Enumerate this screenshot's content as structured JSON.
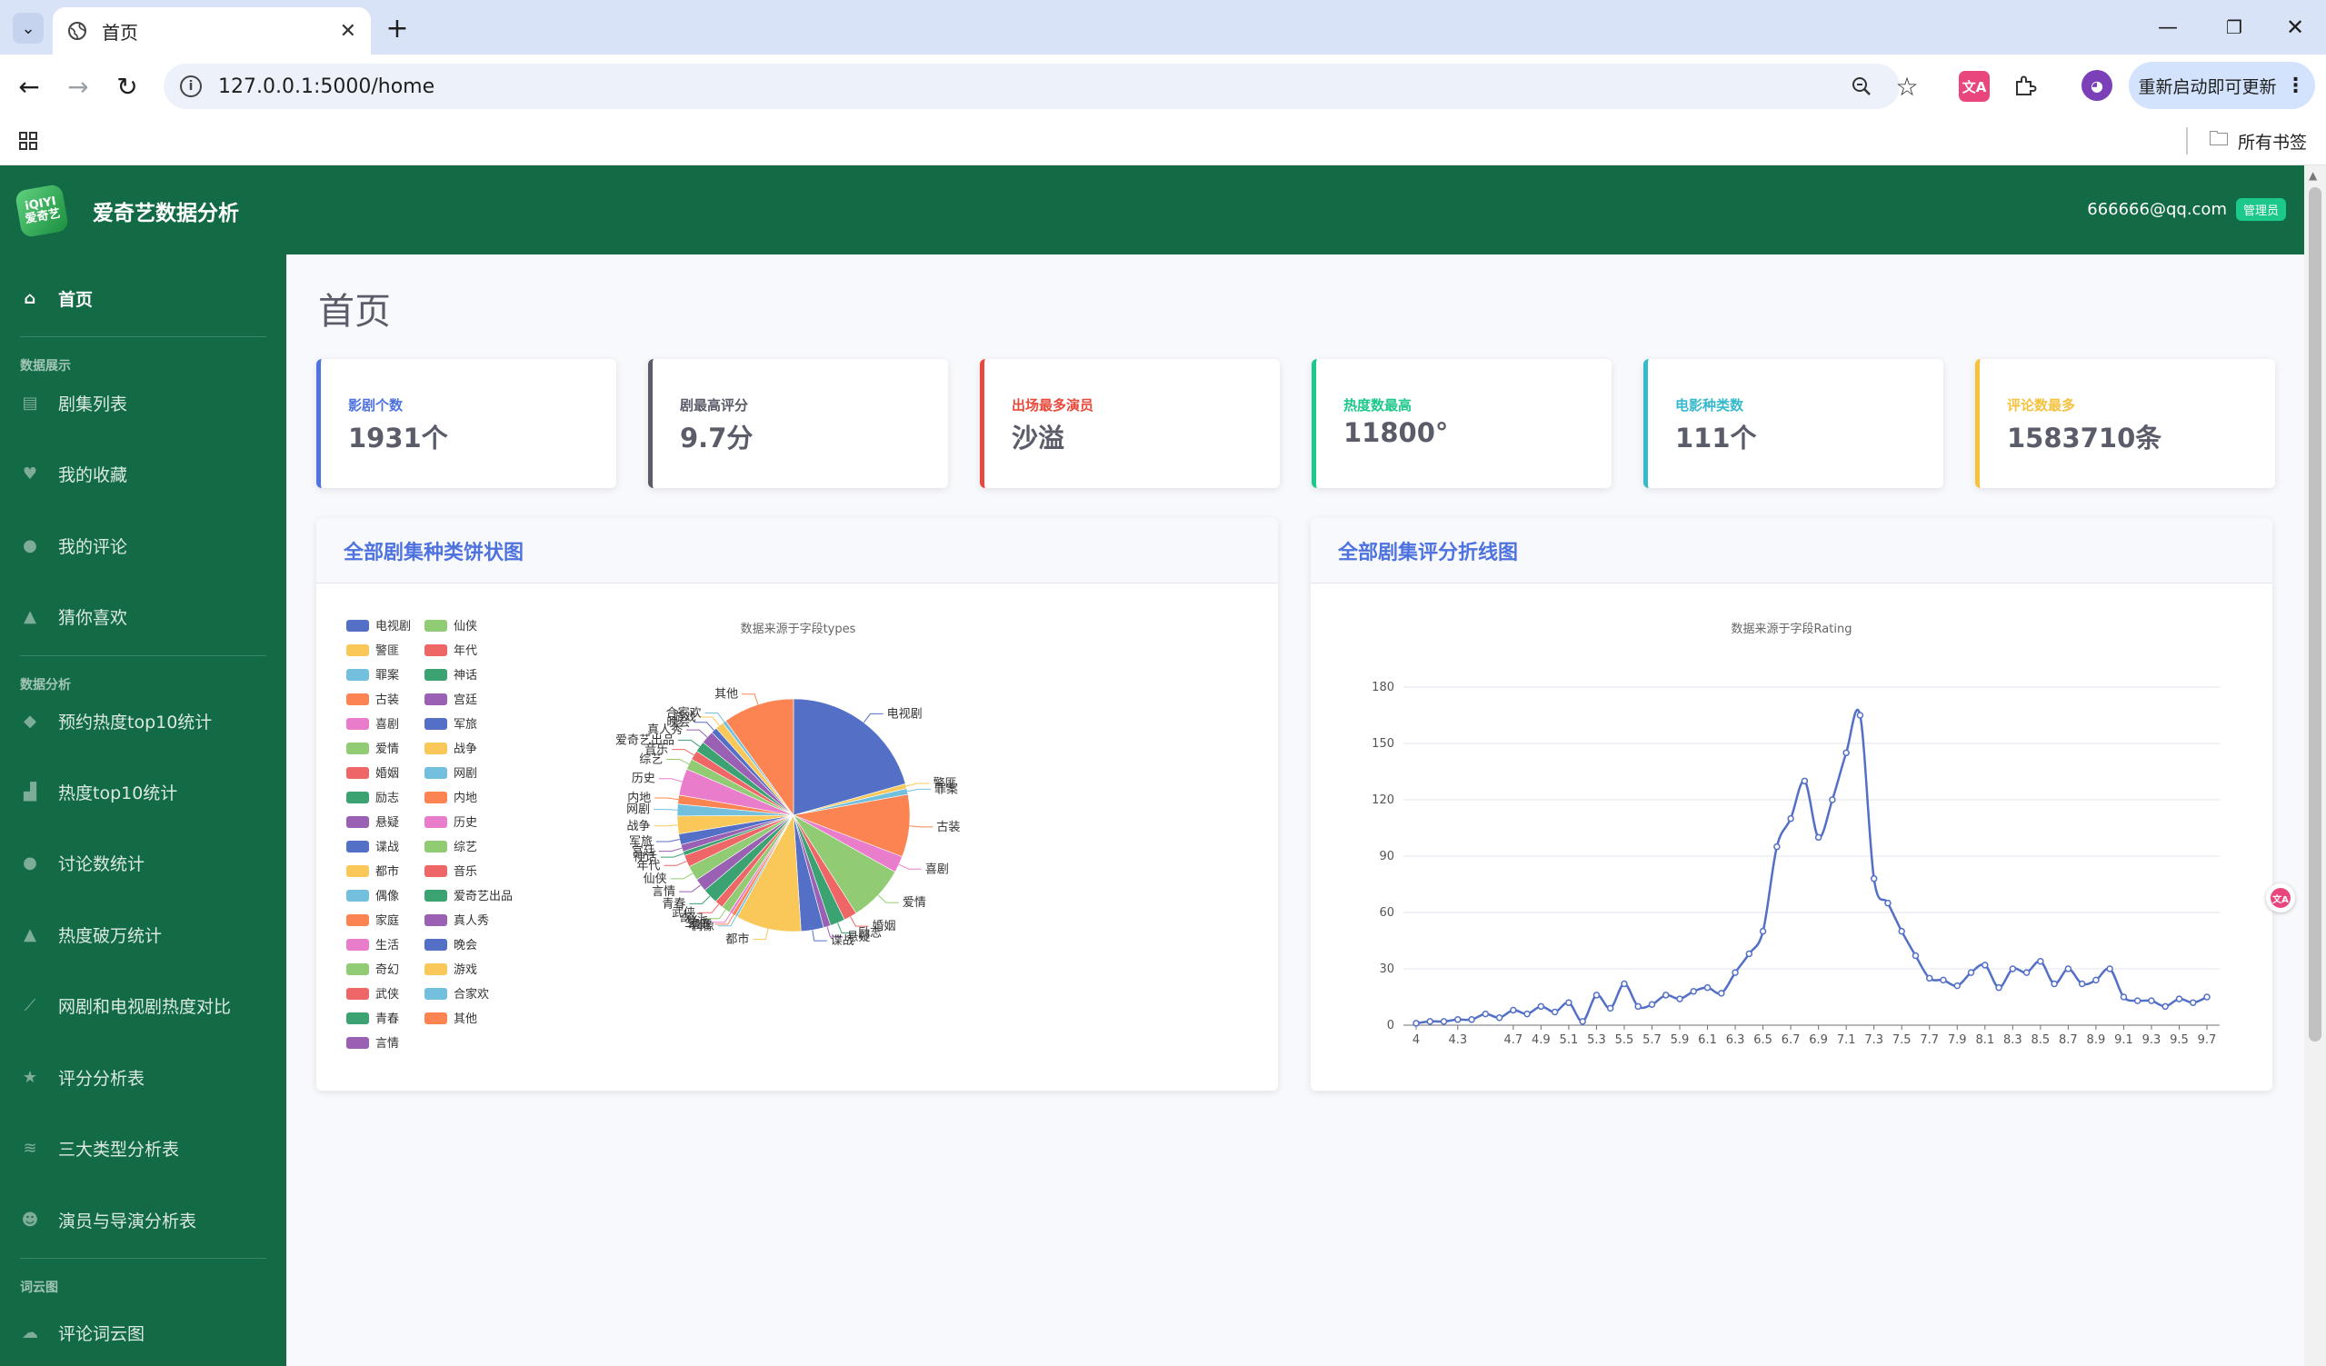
{
  "browser": {
    "tab_title": "首页",
    "url": "127.0.0.1:5000/home",
    "update_button": "重新启动即可更新",
    "bookmarks_label": "所有书签",
    "translate_ext_label": "文A"
  },
  "app": {
    "logo_text": "iQIYI 爱奇艺",
    "brand_name": "爱奇艺数据分析",
    "user_email": "666666@qq.com",
    "role_badge": "管理员"
  },
  "sidebar": {
    "home": "首页",
    "sections": [
      {
        "title": "数据展示",
        "items": [
          "剧集列表",
          "我的收藏",
          "我的评论",
          "猜你喜欢"
        ]
      },
      {
        "title": "数据分析",
        "items": [
          "预约热度top10统计",
          "热度top10统计",
          "讨论数统计",
          "热度破万统计",
          "网剧和电视剧热度对比",
          "评分分析表",
          "三大类型分析表",
          "演员与导演分析表"
        ]
      },
      {
        "title": "词云图",
        "items": [
          "评论词云图"
        ]
      }
    ]
  },
  "page_title": "首页",
  "stats": [
    {
      "label": "影剧个数",
      "value": "1931个",
      "color": "#4e73df"
    },
    {
      "label": "剧最高评分",
      "value": "9.7分",
      "color": "#5a5c69"
    },
    {
      "label": "出场最多演员",
      "value": "沙溢",
      "color": "#e74a3b"
    },
    {
      "label": "热度数最高",
      "value": "11800°",
      "color": "#1cc88a"
    },
    {
      "label": "电影种类数",
      "value": "111个",
      "color": "#36b9cc"
    },
    {
      "label": "评论数最多",
      "value": "1583710条",
      "color": "#f6c23e"
    }
  ],
  "pie_card": {
    "title": "全部剧集种类饼状图",
    "subtitle": "数据来源于字段types"
  },
  "line_card": {
    "title": "全部剧集评分折线图",
    "subtitle": "数据来源于字段Rating"
  },
  "chart_data": [
    {
      "type": "pie",
      "title": "全部剧集种类饼状图",
      "subtitle": "数据来源于字段types",
      "legend_position": "left",
      "palette": [
        "#5470c6",
        "#91cc75",
        "#fac858",
        "#ee6666",
        "#73c0de",
        "#3ba272",
        "#fc8452",
        "#9a60b4",
        "#ea7ccc"
      ],
      "legend": [
        "电视剧",
        "仙侠",
        "警匪",
        "年代",
        "罪案",
        "神话",
        "古装",
        "宫廷",
        "喜剧",
        "军旅",
        "爱情",
        "战争",
        "婚姻",
        "网剧",
        "励志",
        "内地",
        "悬疑",
        "历史",
        "谍战",
        "综艺",
        "都市",
        "音乐",
        "偶像",
        "爱奇艺出品",
        "家庭",
        "真人秀",
        "生活",
        "晚会",
        "奇幻",
        "游戏",
        "武侠",
        "合家欢",
        "青春",
        "其他",
        "言情"
      ],
      "slices": [
        {
          "name": "电视剧",
          "value": 250
        },
        {
          "name": "警匪",
          "value": 8
        },
        {
          "name": "罪案",
          "value": 10
        },
        {
          "name": "古装",
          "value": 105
        },
        {
          "name": "喜剧",
          "value": 28
        },
        {
          "name": "爱情",
          "value": 95
        },
        {
          "name": "婚姻",
          "value": 22
        },
        {
          "name": "励志",
          "value": 25
        },
        {
          "name": "悬疑",
          "value": 12
        },
        {
          "name": "谍战",
          "value": 38
        },
        {
          "name": "都市",
          "value": 110
        },
        {
          "name": "偶像",
          "value": 4
        },
        {
          "name": "家庭",
          "value": 6
        },
        {
          "name": "生活",
          "value": 5
        },
        {
          "name": "奇幻",
          "value": 15
        },
        {
          "name": "武侠",
          "value": 14
        },
        {
          "name": "青春",
          "value": 26
        },
        {
          "name": "言情",
          "value": 22
        },
        {
          "name": "仙侠",
          "value": 25
        },
        {
          "name": "年代",
          "value": 20
        },
        {
          "name": "神话",
          "value": 7
        },
        {
          "name": "宫廷",
          "value": 12
        },
        {
          "name": "军旅",
          "value": 18
        },
        {
          "name": "战争",
          "value": 30
        },
        {
          "name": "网剧",
          "value": 20
        },
        {
          "name": "内地",
          "value": 15
        },
        {
          "name": "历史",
          "value": 45
        },
        {
          "name": "综艺",
          "value": 18
        },
        {
          "name": "音乐",
          "value": 16
        },
        {
          "name": "爱奇艺出品",
          "value": 18
        },
        {
          "name": "真人秀",
          "value": 22
        },
        {
          "name": "晚会",
          "value": 10
        },
        {
          "name": "游戏",
          "value": 14
        },
        {
          "name": "合家欢",
          "value": 6
        },
        {
          "name": "其他",
          "value": 120
        }
      ]
    },
    {
      "type": "line",
      "title": "全部剧集评分折线图",
      "subtitle": "数据来源于字段Rating",
      "color": "#5470c6",
      "ylim": [
        0,
        180
      ],
      "yticks": [
        0,
        30,
        60,
        90,
        120,
        150,
        180
      ],
      "xtick_labels": [
        "4",
        "4.3",
        "4.7",
        "4.9",
        "5.1",
        "5.3",
        "5.5",
        "5.7",
        "5.9",
        "6.1",
        "6.3",
        "6.5",
        "6.7",
        "6.9",
        "7.1",
        "7.3",
        "7.5",
        "7.7",
        "7.9",
        "8.1",
        "8.3",
        "8.5",
        "8.7",
        "8.9",
        "9.1",
        "9.3",
        "9.5",
        "9.7"
      ],
      "x": [
        "4",
        "4.1",
        "4.2",
        "4.3",
        "4.4",
        "4.5",
        "4.6",
        "4.7",
        "4.8",
        "4.9",
        "5",
        "5.1",
        "5.2",
        "5.3",
        "5.4",
        "5.5",
        "5.6",
        "5.7",
        "5.8",
        "5.9",
        "6",
        "6.1",
        "6.2",
        "6.3",
        "6.4",
        "6.5",
        "6.6",
        "6.7",
        "6.8",
        "6.9",
        "7",
        "7.1",
        "7.2",
        "7.3",
        "7.4",
        "7.5",
        "7.6",
        "7.7",
        "7.8",
        "7.9",
        "8",
        "8.1",
        "8.2",
        "8.3",
        "8.4",
        "8.5",
        "8.6",
        "8.7",
        "8.8",
        "8.9",
        "9",
        "9.1",
        "9.2",
        "9.3",
        "9.4",
        "9.5",
        "9.6",
        "9.7"
      ],
      "y": [
        1,
        2,
        2,
        3,
        3,
        6,
        4,
        8,
        6,
        10,
        7,
        12,
        2,
        16,
        9,
        22,
        10,
        11,
        16,
        14,
        18,
        20,
        17,
        28,
        38,
        50,
        95,
        110,
        130,
        100,
        120,
        145,
        165,
        78,
        65,
        50,
        37,
        25,
        24,
        21,
        28,
        32,
        20,
        30,
        28,
        34,
        22,
        30,
        22,
        24,
        30,
        15,
        13,
        13,
        10,
        14,
        12,
        15
      ]
    }
  ]
}
